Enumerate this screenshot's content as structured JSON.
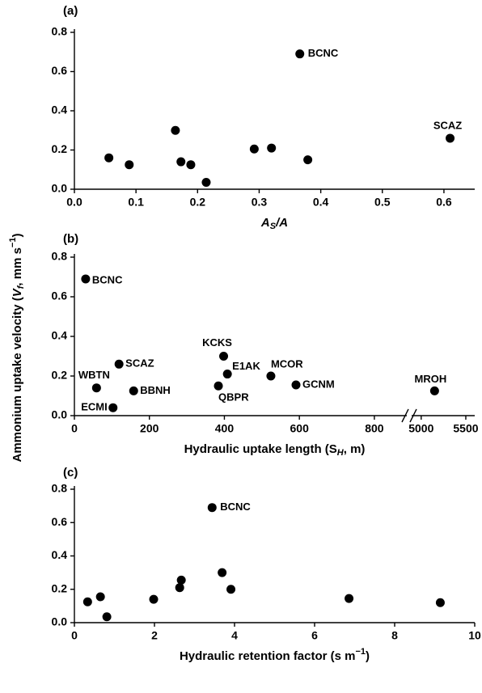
{
  "shared_y_label": [
    {
      "text": "Ammonium uptake velocity (",
      "style": "normal"
    },
    {
      "text": "V",
      "style": "italic"
    },
    {
      "text": "f",
      "style": "italic-sub"
    },
    {
      "text": ", mm s",
      "style": "normal"
    },
    {
      "text": "−1",
      "style": "sup"
    },
    {
      "text": ")",
      "style": "normal"
    }
  ],
  "chart_data": [
    {
      "type": "scatter",
      "panel": "(a)",
      "x_label": [
        {
          "text": "A",
          "style": "italic"
        },
        {
          "text": "S",
          "style": "italic-sub"
        },
        {
          "text": "/A",
          "style": "italic"
        }
      ],
      "x": [
        0.056,
        0.089,
        0.164,
        0.173,
        0.189,
        0.214,
        0.292,
        0.32,
        0.366,
        0.379,
        0.61
      ],
      "values": [
        0.16,
        0.125,
        0.3,
        0.14,
        0.125,
        0.035,
        0.205,
        0.21,
        0.69,
        0.15,
        0.26
      ],
      "labels": [
        null,
        null,
        null,
        null,
        null,
        null,
        null,
        null,
        "BCNC",
        null,
        "SCAZ"
      ],
      "color": "#000000",
      "xlim": [
        0,
        0.65
      ],
      "xticks": [
        {
          "value": 0,
          "label": "0.0"
        },
        0.1,
        0.2,
        0.3,
        0.4,
        0.5,
        0.6
      ],
      "ylim": [
        0,
        0.8
      ],
      "yticks": [
        {
          "value": 0,
          "label": "0.0"
        },
        0.2,
        0.4,
        0.6,
        0.8
      ]
    },
    {
      "type": "scatter",
      "panel": "(b)",
      "x_label": [
        {
          "text": "Hydraulic uptake length (S",
          "style": "normal"
        },
        {
          "text": "H",
          "style": "italic-sub"
        },
        {
          "text": ", m)",
          "style": "normal"
        }
      ],
      "x": [
        30,
        59,
        119,
        103,
        158,
        384,
        398,
        408,
        524,
        591,
        5150
      ],
      "values": [
        0.69,
        0.14,
        0.26,
        0.04,
        0.125,
        0.15,
        0.3,
        0.21,
        0.2,
        0.155,
        0.125
      ],
      "labels": [
        "BCNC",
        "WBTN",
        "SCAZ",
        "ECMI",
        "BBNH",
        "QBPR",
        "KCKS",
        "E1AK",
        "MCOR",
        "GCNM",
        "MROH"
      ],
      "color": "#000000",
      "xlim": [
        0,
        5600
      ],
      "xbreak": [
        880,
        4920
      ],
      "xticks": [
        0,
        200,
        400,
        600,
        800,
        5000,
        5500
      ],
      "ylim": [
        0,
        0.8
      ],
      "yticks": [
        {
          "value": 0,
          "label": "0.0"
        },
        0.2,
        0.4,
        0.6,
        0.8
      ]
    },
    {
      "type": "scatter",
      "panel": "(c)",
      "x_label": [
        {
          "text": "Hydraulic retention factor (s m",
          "style": "normal"
        },
        {
          "text": "−1",
          "style": "sup"
        },
        {
          "text": ")",
          "style": "normal"
        }
      ],
      "x": [
        0.33,
        0.65,
        0.81,
        1.98,
        2.63,
        2.67,
        3.44,
        3.69,
        3.91,
        6.86,
        9.14
      ],
      "values": [
        0.125,
        0.155,
        0.035,
        0.14,
        0.21,
        0.255,
        0.69,
        0.3,
        0.2,
        0.145,
        0.12
      ],
      "labels": [
        null,
        null,
        null,
        null,
        null,
        null,
        "BCNC",
        null,
        null,
        null,
        null
      ],
      "color": "#000000",
      "xlim": [
        0,
        10
      ],
      "xticks": [
        0,
        2,
        4,
        6,
        8,
        10
      ],
      "ylim": [
        0,
        0.8
      ],
      "yticks": [
        {
          "value": 0,
          "label": "0.0"
        },
        0.2,
        0.4,
        0.6,
        0.8
      ]
    }
  ]
}
